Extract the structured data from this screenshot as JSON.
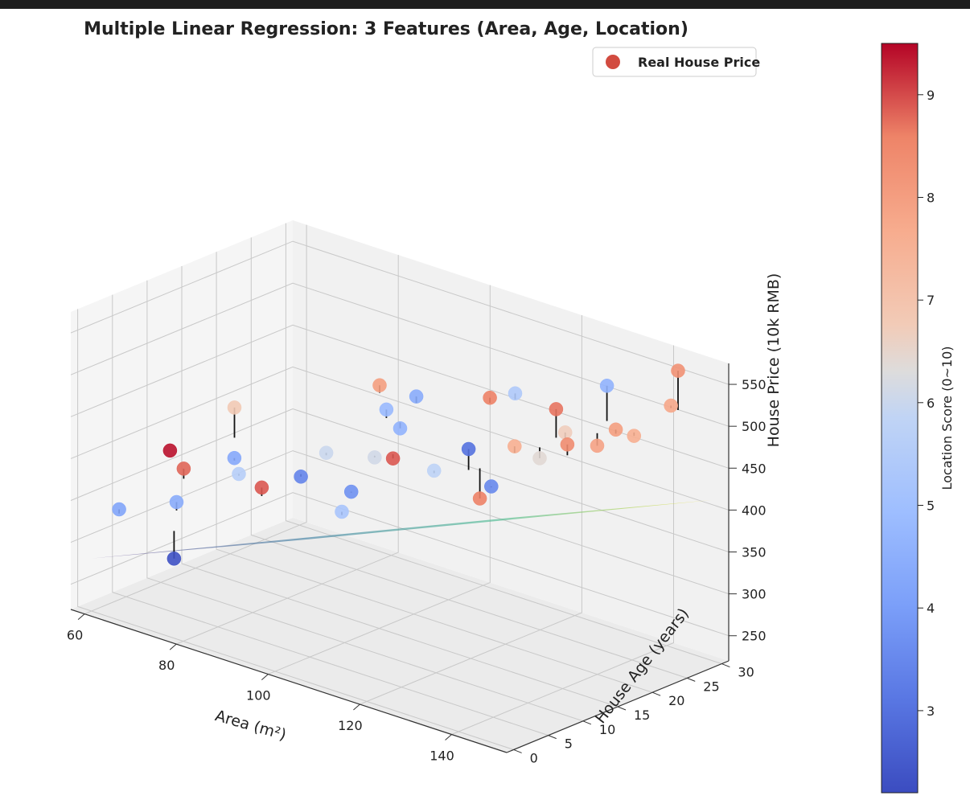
{
  "chart_data": {
    "type": "scatter",
    "title": "Multiple Linear Regression: 3 Features (Area, Age, Location)",
    "xlabel": "Area (m²)",
    "ylabel": "House Age (years)",
    "zlabel": "House Price (10k RMB)",
    "colorbar_label": "Location Score (0~10)",
    "legend": {
      "label": "Real House Price",
      "placement": "top-right"
    },
    "grid": true,
    "xlim": [
      57,
      152
    ],
    "ylim": [
      -1,
      31
    ],
    "zlim": [
      220,
      575
    ],
    "x_ticks": [
      60,
      80,
      100,
      120,
      140
    ],
    "y_ticks": [
      0,
      5,
      10,
      15,
      20,
      25,
      30
    ],
    "z_ticks": [
      250,
      300,
      350,
      400,
      450,
      500,
      550
    ],
    "colorbar_range": [
      2.2,
      9.5
    ],
    "colorbar_ticks": [
      3,
      4,
      5,
      6,
      7,
      8,
      9
    ],
    "colormap": "coolwarm",
    "surface_colormap": "viridis",
    "plane": {
      "intercept": 143,
      "coef_area": 2.33,
      "coef_age": -2.69
    },
    "points": [
      {
        "area": 62,
        "age": 10,
        "price": 381,
        "score": 9.4,
        "predicted": 381
      },
      {
        "area": 63,
        "age": 2,
        "price": 340,
        "score": 4.2,
        "predicted": 335
      },
      {
        "area": 68,
        "age": 8,
        "price": 377,
        "score": 8.8,
        "predicted": 365
      },
      {
        "area": 70,
        "age": 14,
        "price": 433,
        "score": 6.8,
        "predicted": 397
      },
      {
        "area": 74,
        "age": 3,
        "price": 365,
        "score": 4.4,
        "predicted": 355
      },
      {
        "area": 73,
        "age": 12,
        "price": 385,
        "score": 4.3,
        "predicted": 382
      },
      {
        "area": 77,
        "age": 10,
        "price": 380,
        "score": 5.6,
        "predicted": 378
      },
      {
        "area": 85,
        "age": 8,
        "price": 385,
        "score": 8.9,
        "predicted": 375
      },
      {
        "area": 78,
        "age": 0,
        "price": 315,
        "score": 2.3,
        "predicted": 348
      },
      {
        "area": 89,
        "age": 11,
        "price": 395,
        "score": 3.4,
        "predicted": 398
      },
      {
        "area": 90,
        "age": 14,
        "price": 415,
        "score": 6.0,
        "predicted": 412
      },
      {
        "area": 85,
        "age": 25,
        "price": 449,
        "score": 8.0,
        "predicted": 440
      },
      {
        "area": 91,
        "age": 22,
        "price": 441,
        "score": 4.8,
        "predicted": 431
      },
      {
        "area": 93,
        "age": 25,
        "price": 450,
        "score": 4.4,
        "predicted": 442
      },
      {
        "area": 94,
        "age": 22,
        "price": 424,
        "score": 4.6,
        "predicted": 431
      },
      {
        "area": 96,
        "age": 17,
        "price": 410,
        "score": 6.1,
        "predicted": 412
      },
      {
        "area": 100,
        "age": 17,
        "price": 416,
        "score": 8.9,
        "predicted": 421
      },
      {
        "area": 103,
        "age": 9,
        "price": 409,
        "score": 3.7,
        "predicted": 408
      },
      {
        "area": 107,
        "age": 5,
        "price": 406,
        "score": 5.2,
        "predicted": 402
      },
      {
        "area": 106,
        "age": 27,
        "price": 465,
        "score": 8.6,
        "predicted": 459
      },
      {
        "area": 110,
        "age": 28,
        "price": 474,
        "score": 5.4,
        "predicted": 467
      },
      {
        "area": 115,
        "age": 13,
        "price": 442,
        "score": 5.8,
        "predicted": 439
      },
      {
        "area": 118,
        "age": 16,
        "price": 463,
        "score": 3.0,
        "predicted": 438
      },
      {
        "area": 125,
        "age": 18,
        "price": 472,
        "score": 7.6,
        "predicted": 464
      },
      {
        "area": 128,
        "age": 11,
        "price": 439,
        "score": 8.6,
        "predicted": 475
      },
      {
        "area": 128,
        "age": 22,
        "price": 508,
        "score": 8.7,
        "predicted": 474
      },
      {
        "area": 130,
        "age": 28,
        "price": 519,
        "score": 4.6,
        "predicted": 477
      },
      {
        "area": 133,
        "age": 20,
        "price": 496,
        "score": 6.7,
        "predicted": 488
      },
      {
        "area": 135,
        "age": 15,
        "price": 486,
        "score": 6.4,
        "predicted": 499
      },
      {
        "area": 141,
        "age": 22,
        "price": 507,
        "score": 8.0,
        "predicted": 502
      },
      {
        "area": 138,
        "age": 17,
        "price": 501,
        "score": 8.4,
        "predicted": 488
      },
      {
        "area": 143,
        "age": 18,
        "price": 505,
        "score": 7.9,
        "predicted": 520
      },
      {
        "area": 148,
        "age": 20,
        "price": 519,
        "score": 7.6,
        "predicted": 523
      },
      {
        "area": 147,
        "age": 27,
        "price": 571,
        "score": 8.3,
        "predicted": 524
      },
      {
        "area": 150,
        "age": 24,
        "price": 545,
        "score": 7.8,
        "predicted": 542
      },
      {
        "area": 132,
        "age": 10,
        "price": 464,
        "score": 3.5,
        "predicted": 463
      }
    ]
  }
}
